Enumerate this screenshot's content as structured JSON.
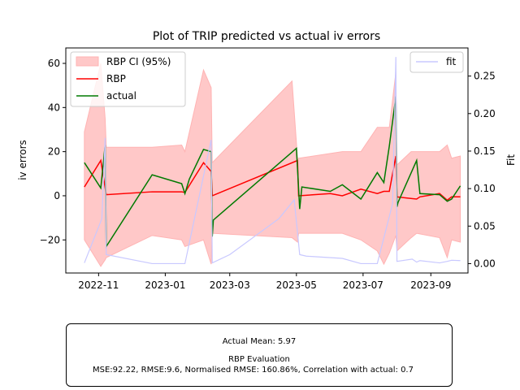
{
  "chart_data": {
    "type": "line",
    "title": "Plot of TRIP predicted vs actual iv errors",
    "ylabel": "iv errors",
    "y2label": "Fit",
    "ylim": [
      -35,
      67
    ],
    "y2lim": [
      -0.0125,
      0.2875
    ],
    "xlim": [
      "2022-10-02",
      "2023-10-05"
    ],
    "xticks": [
      "2022-11",
      "2023-01",
      "2023-03",
      "2023-05",
      "2023-07",
      "2023-09"
    ],
    "yticks": [
      -20,
      0,
      20,
      40,
      60
    ],
    "y2ticks": [
      "0.00",
      "0.05",
      "0.10",
      "0.15",
      "0.20",
      "0.25"
    ],
    "legend_left": [
      "RBP CI (95%)",
      "RBP",
      "actual"
    ],
    "legend_right": [
      "fit"
    ],
    "legend_left_position": "upper-left",
    "legend_right_position": "upper-right",
    "colors": {
      "ci": "#ffb3b3",
      "rbp": "#ff0000",
      "actual": "#007a00",
      "fit": "#c8c8ff"
    },
    "ci": {
      "x": [
        "2022-10-19",
        "2022-11-03",
        "2022-11-07",
        "2022-11-08",
        "2022-12-20",
        "2023-01-16",
        "2023-01-19",
        "2023-02-05",
        "2023-02-12",
        "2023-02-13",
        "2023-04-27",
        "2023-05-02",
        "2023-05-03",
        "2023-06-12",
        "2023-06-29",
        "2023-07-14",
        "2023-07-20",
        "2023-07-25",
        "2023-07-31",
        "2023-08-01",
        "2023-08-14",
        "2023-08-19",
        "2023-09-09",
        "2023-09-16",
        "2023-09-20",
        "2023-09-28"
      ],
      "upper": [
        29,
        60,
        35,
        22,
        22,
        23,
        20,
        57,
        49,
        15,
        52,
        17,
        17,
        20,
        20,
        31,
        31,
        31,
        56,
        14,
        20,
        20,
        20,
        23,
        17,
        18
      ],
      "lower": [
        -20,
        -32,
        -29,
        -28,
        -18,
        -20,
        -23,
        -20,
        -31,
        -17,
        -19,
        -21,
        -17,
        -17,
        -20,
        -25,
        -31,
        -26,
        -18,
        -25,
        -19,
        -17,
        -19,
        -28,
        -20,
        -21
      ]
    },
    "series": [
      {
        "name": "RBP",
        "x": [
          "2022-10-19",
          "2022-11-03",
          "2022-11-08",
          "2022-12-20",
          "2023-01-16",
          "2023-01-19",
          "2023-02-05",
          "2023-02-12",
          "2023-02-13",
          "2023-05-02",
          "2023-05-03",
          "2023-06-01",
          "2023-06-12",
          "2023-06-29",
          "2023-07-14",
          "2023-07-20",
          "2023-07-25",
          "2023-07-31",
          "2023-08-01",
          "2023-08-19",
          "2023-08-22",
          "2023-09-09",
          "2023-09-16",
          "2023-09-20",
          "2023-09-28"
        ],
        "values": [
          4,
          16,
          0.5,
          1.8,
          1.8,
          1.5,
          15,
          11,
          0,
          16,
          0,
          1,
          0,
          3,
          1,
          2,
          2,
          18,
          -0.5,
          -1.5,
          -0.5,
          1,
          -2,
          -0.5,
          -0.5
        ]
      },
      {
        "name": "actual",
        "x": [
          "2022-10-19",
          "2022-11-03",
          "2022-11-07",
          "2022-11-08",
          "2022-12-20",
          "2023-01-16",
          "2023-01-19",
          "2023-01-23",
          "2023-02-05",
          "2023-02-12",
          "2023-02-13",
          "2023-02-14",
          "2023-05-01",
          "2023-05-04",
          "2023-05-06",
          "2023-06-01",
          "2023-06-12",
          "2023-06-29",
          "2023-07-14",
          "2023-07-20",
          "2023-07-25",
          "2023-07-31",
          "2023-08-01",
          "2023-08-02",
          "2023-08-19",
          "2023-08-22",
          "2023-09-09",
          "2023-09-16",
          "2023-09-20",
          "2023-09-28"
        ],
        "values": [
          15,
          3.5,
          23,
          -23,
          9.5,
          5.5,
          1,
          7.5,
          21,
          20,
          -18.5,
          -11,
          21.5,
          -6,
          4,
          2,
          5,
          -1.5,
          10.5,
          6,
          22.5,
          45,
          -5,
          -3,
          16,
          1,
          0.5,
          -2.5,
          -1.5,
          4.5
        ]
      },
      {
        "name": "fit",
        "axis": "right",
        "x": [
          "2022-10-19",
          "2022-11-04",
          "2022-11-07",
          "2022-11-08",
          "2022-12-20",
          "2023-01-16",
          "2023-01-19",
          "2023-02-12",
          "2023-02-13",
          "2023-03-01",
          "2023-04-15",
          "2023-04-29",
          "2023-05-04",
          "2023-05-10",
          "2023-06-12",
          "2023-06-29",
          "2023-07-14",
          "2023-07-28",
          "2023-07-31",
          "2023-08-01",
          "2023-08-15",
          "2023-08-19",
          "2023-08-22",
          "2023-09-09",
          "2023-09-16",
          "2023-09-20",
          "2023-09-28"
        ],
        "values": [
          0.001,
          0.06,
          0.1675,
          0.012,
          0,
          0,
          0,
          0.165,
          0.001,
          0.012,
          0.06,
          0.085,
          0.012,
          0.01,
          0.007,
          0,
          0,
          0.08,
          0.2755,
          0.003,
          0.006,
          0.002,
          0.004,
          0.001,
          0.003,
          0.0045,
          0.004
        ]
      }
    ]
  },
  "evaluation": {
    "line1": "Actual Mean: 5.97",
    "line2": "RBP Evaluation",
    "line3": "MSE:92.22, RMSE:9.6, Normalised RMSE: 160.86%, Correlation with actual: 0.7"
  }
}
